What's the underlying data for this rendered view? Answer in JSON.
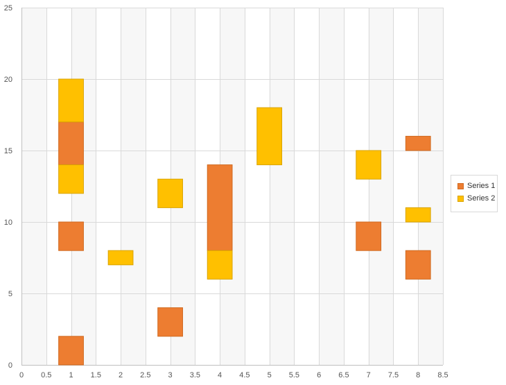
{
  "chart_data": {
    "type": "range-bar",
    "title": "",
    "xlabel": "",
    "ylabel": "",
    "xlim": [
      0,
      8.5
    ],
    "ylim": [
      0,
      25
    ],
    "x_ticks": [
      "0",
      "0.5",
      "1",
      "1.5",
      "2",
      "2.5",
      "3",
      "3.5",
      "4",
      "4.5",
      "5",
      "5.5",
      "6",
      "6.5",
      "7",
      "7.5",
      "8",
      "8.5"
    ],
    "y_ticks": [
      "0",
      "5",
      "10",
      "15",
      "20",
      "25"
    ],
    "grid": true,
    "legend_position": "right",
    "bar_width": 0.5,
    "series": [
      {
        "name": "Series 1",
        "color": "#ED7D31",
        "border": "#D0691F",
        "ranges": [
          {
            "x": 1,
            "low": 0,
            "high": 2
          },
          {
            "x": 1,
            "low": 8,
            "high": 10
          },
          {
            "x": 1,
            "low": 14,
            "high": 17
          },
          {
            "x": 3,
            "low": 2,
            "high": 4
          },
          {
            "x": 4,
            "low": 8,
            "high": 14
          },
          {
            "x": 7,
            "low": 8,
            "high": 10
          },
          {
            "x": 8,
            "low": 6,
            "high": 8
          },
          {
            "x": 8,
            "low": 15,
            "high": 16
          }
        ]
      },
      {
        "name": "Series 2",
        "color": "#FFC000",
        "border": "#D9A300",
        "ranges": [
          {
            "x": 1,
            "low": 12,
            "high": 14
          },
          {
            "x": 1,
            "low": 17,
            "high": 20
          },
          {
            "x": 2,
            "low": 7,
            "high": 8
          },
          {
            "x": 3,
            "low": 11,
            "high": 13
          },
          {
            "x": 4,
            "low": 6,
            "high": 8
          },
          {
            "x": 5,
            "low": 14,
            "high": 18
          },
          {
            "x": 7,
            "low": 13,
            "high": 15
          },
          {
            "x": 8,
            "low": 10,
            "high": 11
          }
        ]
      }
    ]
  }
}
